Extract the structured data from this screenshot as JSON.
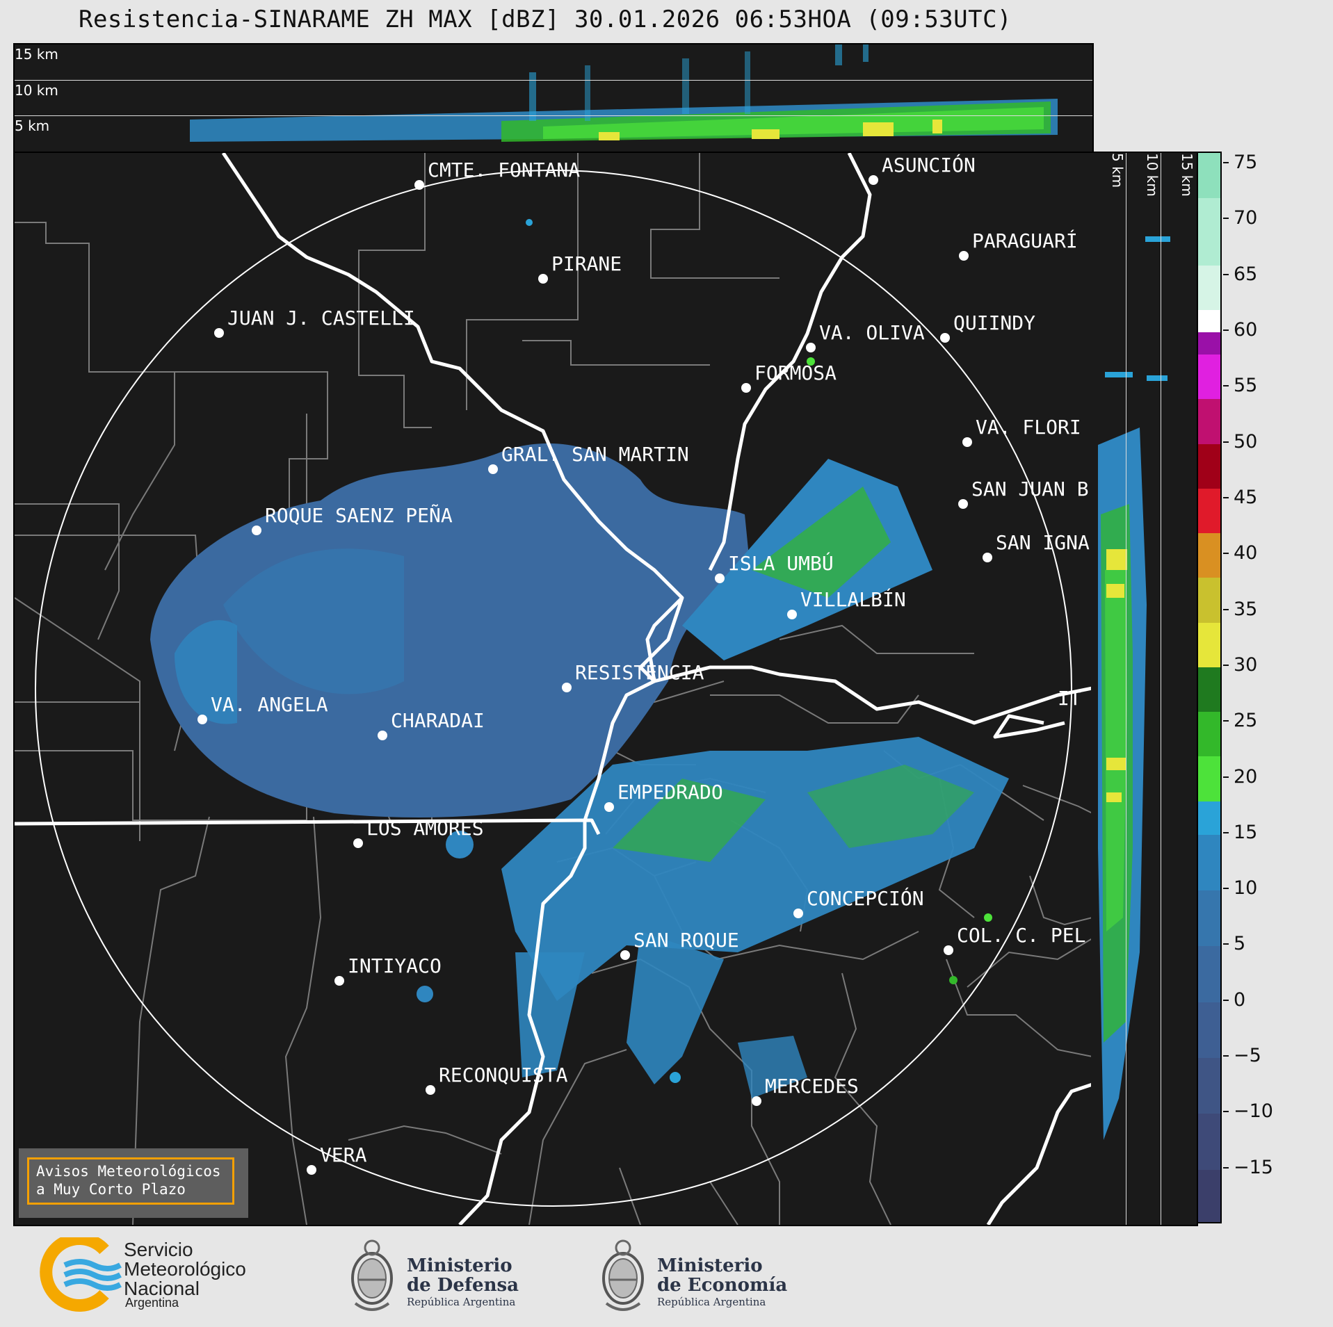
{
  "title": "Resistencia-SINARAME ZH MAX [dBZ] 30.01.2026 06:53HOA (09:53UTC)",
  "top_profile": {
    "height_labels": [
      "15 km",
      "10 km",
      "5 km"
    ]
  },
  "side_profile": {
    "height_labels": [
      "5 km",
      "10 km",
      "15 km"
    ]
  },
  "map": {
    "radar_site": "RESISTENCIA",
    "cities": [
      {
        "name": "CMTE. FONTANA"
      },
      {
        "name": "ASUNCIÓN"
      },
      {
        "name": "PARAGUARÍ"
      },
      {
        "name": "PIRANE"
      },
      {
        "name": "JUAN J. CASTELLI"
      },
      {
        "name": "VA. OLIVA"
      },
      {
        "name": "QUIINDY"
      },
      {
        "name": "FORMOSA"
      },
      {
        "name": "VA. FLORI"
      },
      {
        "name": "GRAL. SAN MARTIN"
      },
      {
        "name": "SAN JUAN B"
      },
      {
        "name": "ROQUE SAENZ PEÑA"
      },
      {
        "name": "SAN IGNA"
      },
      {
        "name": "ISLA UMBÚ"
      },
      {
        "name": "VILLALBÍN"
      },
      {
        "name": "RESISTENCIA"
      },
      {
        "name": "VA. ANGELA"
      },
      {
        "name": "CHARADAI"
      },
      {
        "name": "IT"
      },
      {
        "name": "EMPEDRADO"
      },
      {
        "name": "LOS AMORES"
      },
      {
        "name": "CONCEPCIÓN"
      },
      {
        "name": "SAN ROQUE"
      },
      {
        "name": "COL. C. PEL"
      },
      {
        "name": "INTIYACO"
      },
      {
        "name": "RECONQUISTA"
      },
      {
        "name": "MERCEDES"
      },
      {
        "name": "VERA"
      }
    ]
  },
  "colorbar": {
    "unit": "dBZ",
    "min": -20,
    "max": 76,
    "tick_labels": [
      "75",
      "70",
      "65",
      "60",
      "55",
      "50",
      "45",
      "40",
      "35",
      "30",
      "25",
      "20",
      "15",
      "10",
      "5",
      "0",
      "−5",
      "−10",
      "−15"
    ],
    "bands": [
      {
        "from": -20,
        "to": -15,
        "color": "#3b3f6a"
      },
      {
        "from": -15,
        "to": -10,
        "color": "#3e4a78"
      },
      {
        "from": -10,
        "to": -5,
        "color": "#3f5585"
      },
      {
        "from": -5,
        "to": 0,
        "color": "#3e5f93"
      },
      {
        "from": 0,
        "to": 5,
        "color": "#3b6aa0"
      },
      {
        "from": 5,
        "to": 10,
        "color": "#3676ad"
      },
      {
        "from": 10,
        "to": 15,
        "color": "#2f86bf"
      },
      {
        "from": 15,
        "to": 18,
        "color": "#2aa3d8"
      },
      {
        "from": 18,
        "to": 22,
        "color": "#4de23a"
      },
      {
        "from": 22,
        "to": 26,
        "color": "#33b82a"
      },
      {
        "from": 26,
        "to": 30,
        "color": "#1f7a1f"
      },
      {
        "from": 30,
        "to": 34,
        "color": "#e6e63a"
      },
      {
        "from": 34,
        "to": 38,
        "color": "#c9c12e"
      },
      {
        "from": 38,
        "to": 42,
        "color": "#d99022"
      },
      {
        "from": 42,
        "to": 46,
        "color": "#e01a2a"
      },
      {
        "from": 46,
        "to": 50,
        "color": "#a00018"
      },
      {
        "from": 50,
        "to": 54,
        "color": "#c01070"
      },
      {
        "from": 54,
        "to": 58,
        "color": "#e020e0"
      },
      {
        "from": 58,
        "to": 60,
        "color": "#9a10a8"
      },
      {
        "from": 60,
        "to": 62,
        "color": "#ffffff"
      },
      {
        "from": 62,
        "to": 66,
        "color": "#d6f4e6"
      },
      {
        "from": 66,
        "to": 72,
        "color": "#b0ecd2"
      },
      {
        "from": 72,
        "to": 76,
        "color": "#8ee0bc"
      }
    ]
  },
  "notice": {
    "line1": "Avisos Meteorológicos",
    "line2": "a Muy Corto Plazo"
  },
  "logos": {
    "smn": {
      "line1": "Servicio",
      "line2": "Meteorológico",
      "line3": "Nacional",
      "country": "Argentina"
    },
    "defensa": {
      "line1": "Ministerio",
      "line2": "de Defensa",
      "sub": "República Argentina"
    },
    "economia": {
      "line1": "Ministerio",
      "line2": "de Economía",
      "sub": "República Argentina"
    }
  },
  "colors": {
    "panel_bg": "#1a1a1a",
    "page_bg": "#e6e6e6",
    "notice_border": "#f5a000",
    "smn_yellow": "#f5a800",
    "smn_blue": "#38a8e0"
  }
}
